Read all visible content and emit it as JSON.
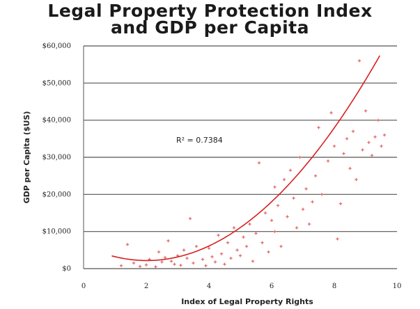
{
  "chart_data": {
    "type": "scatter",
    "title_lines": [
      "Legal Property Protection Index",
      "and GDP per Capita"
    ],
    "xlabel": "Index of Legal Property Rights",
    "ylabel": "GDP per Capita ($US)",
    "xlim": [
      0,
      10
    ],
    "ylim": [
      0,
      60000
    ],
    "x_ticks": [
      0,
      2,
      4,
      6,
      8,
      10
    ],
    "x_tick_labels": [
      "0",
      "2",
      "4",
      "6",
      "8",
      "10"
    ],
    "y_ticks": [
      0,
      10000,
      20000,
      30000,
      40000,
      50000,
      60000
    ],
    "y_tick_labels": [
      "$0",
      "$10,000",
      "$20,000",
      "$30,000",
      "$40,000",
      "$50,000",
      "$60,000"
    ],
    "grid": "horizontal",
    "legend": "none",
    "annotation": "R² = 0.7384",
    "point_color": "#e06666",
    "trend_color": "#d62020",
    "trendline": {
      "type": "polynomial",
      "coeffs": [
        6262,
        -4040,
        1000
      ]
    },
    "points": [
      {
        "x": 1.2,
        "y": 800
      },
      {
        "x": 1.4,
        "y": 6500
      },
      {
        "x": 1.6,
        "y": 1500
      },
      {
        "x": 1.8,
        "y": 600
      },
      {
        "x": 2.0,
        "y": 1000
      },
      {
        "x": 2.1,
        "y": 2500
      },
      {
        "x": 2.3,
        "y": 500
      },
      {
        "x": 2.4,
        "y": 4500
      },
      {
        "x": 2.5,
        "y": 1800
      },
      {
        "x": 2.6,
        "y": 3000
      },
      {
        "x": 2.7,
        "y": 7500
      },
      {
        "x": 2.8,
        "y": 2000
      },
      {
        "x": 2.9,
        "y": 1200
      },
      {
        "x": 3.0,
        "y": 3500
      },
      {
        "x": 3.1,
        "y": 900
      },
      {
        "x": 3.2,
        "y": 5000
      },
      {
        "x": 3.3,
        "y": 2800
      },
      {
        "x": 3.4,
        "y": 13500
      },
      {
        "x": 3.5,
        "y": 1500
      },
      {
        "x": 3.6,
        "y": 6000
      },
      {
        "x": 3.8,
        "y": 2500
      },
      {
        "x": 3.9,
        "y": 800
      },
      {
        "x": 4.0,
        "y": 5500
      },
      {
        "x": 4.1,
        "y": 3200
      },
      {
        "x": 4.2,
        "y": 1800
      },
      {
        "x": 4.3,
        "y": 9000
      },
      {
        "x": 4.4,
        "y": 4000
      },
      {
        "x": 4.5,
        "y": 1200
      },
      {
        "x": 4.6,
        "y": 7000
      },
      {
        "x": 4.7,
        "y": 2800
      },
      {
        "x": 4.8,
        "y": 11000
      },
      {
        "x": 4.9,
        "y": 5000
      },
      {
        "x": 5.0,
        "y": 3500
      },
      {
        "x": 5.1,
        "y": 8500
      },
      {
        "x": 5.2,
        "y": 6000
      },
      {
        "x": 5.3,
        "y": 12000
      },
      {
        "x": 5.4,
        "y": 2000
      },
      {
        "x": 5.5,
        "y": 9500
      },
      {
        "x": 5.6,
        "y": 28500
      },
      {
        "x": 5.7,
        "y": 7000
      },
      {
        "x": 5.8,
        "y": 15000
      },
      {
        "x": 5.9,
        "y": 4500
      },
      {
        "x": 6.0,
        "y": 13000
      },
      {
        "x": 6.1,
        "y": 22000
      },
      {
        "x": 6.1,
        "y": 10000
      },
      {
        "x": 6.2,
        "y": 17000
      },
      {
        "x": 6.3,
        "y": 6000
      },
      {
        "x": 6.4,
        "y": 24000
      },
      {
        "x": 6.5,
        "y": 14000
      },
      {
        "x": 6.6,
        "y": 26500
      },
      {
        "x": 6.7,
        "y": 19000
      },
      {
        "x": 6.8,
        "y": 11000
      },
      {
        "x": 6.9,
        "y": 30000
      },
      {
        "x": 7.0,
        "y": 16000
      },
      {
        "x": 7.1,
        "y": 21500
      },
      {
        "x": 7.2,
        "y": 12000
      },
      {
        "x": 7.3,
        "y": 18000
      },
      {
        "x": 7.4,
        "y": 25000
      },
      {
        "x": 7.5,
        "y": 38000
      },
      {
        "x": 7.6,
        "y": 20000
      },
      {
        "x": 7.8,
        "y": 29000
      },
      {
        "x": 7.9,
        "y": 42000
      },
      {
        "x": 8.0,
        "y": 33000
      },
      {
        "x": 8.1,
        "y": 8000
      },
      {
        "x": 8.2,
        "y": 17500
      },
      {
        "x": 8.3,
        "y": 31000
      },
      {
        "x": 8.4,
        "y": 35000
      },
      {
        "x": 8.5,
        "y": 27000
      },
      {
        "x": 8.6,
        "y": 37000
      },
      {
        "x": 8.7,
        "y": 24000
      },
      {
        "x": 8.8,
        "y": 56000
      },
      {
        "x": 8.9,
        "y": 32000
      },
      {
        "x": 9.0,
        "y": 42500
      },
      {
        "x": 9.1,
        "y": 34000
      },
      {
        "x": 9.2,
        "y": 30500
      },
      {
        "x": 9.3,
        "y": 35500
      },
      {
        "x": 9.4,
        "y": 40000
      },
      {
        "x": 9.5,
        "y": 33000
      },
      {
        "x": 9.6,
        "y": 36000
      }
    ]
  }
}
